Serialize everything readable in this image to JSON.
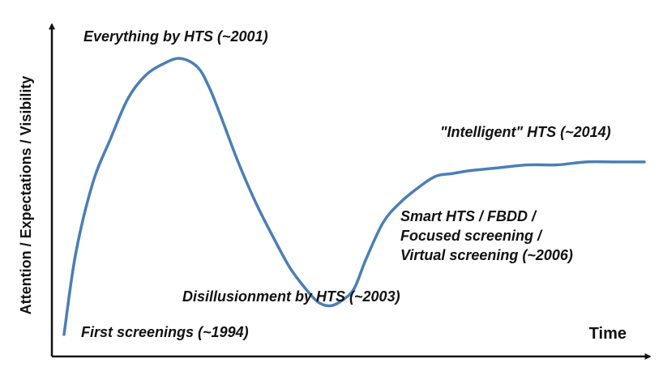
{
  "chart_data": {
    "type": "line",
    "title": "",
    "xlabel": "Time",
    "ylabel": "Attention / Expectations / Visibility",
    "xlim": [
      0,
      100
    ],
    "ylim": [
      0,
      100
    ],
    "grid": false,
    "ticks_shown": false,
    "series": [
      {
        "color": "#4a7fb5",
        "x": [
          0,
          2,
          5,
          8,
          11,
          14,
          17,
          20,
          23,
          25,
          27,
          30,
          33,
          36,
          39,
          42,
          44,
          46,
          48,
          50,
          52,
          55,
          58,
          61,
          64,
          67,
          70,
          75,
          80,
          85,
          90,
          95,
          100
        ],
        "y": [
          2,
          30,
          55,
          70,
          84,
          92,
          96,
          98,
          95,
          88,
          78,
          62,
          48,
          36,
          25,
          17,
          13,
          12,
          14,
          18,
          28,
          41,
          48,
          53,
          57,
          58,
          59,
          60,
          61,
          61,
          62,
          62,
          62
        ]
      }
    ],
    "annotations": [
      {
        "key": "first",
        "text": "First screenings (~1994)",
        "x": 2,
        "y": 2
      },
      {
        "key": "peak",
        "text": "Everything by HTS (~2001)",
        "x": 20,
        "y": 98
      },
      {
        "key": "trough",
        "text": "Disillusionment by HTS (~2003)",
        "x": 46,
        "y": 12
      },
      {
        "key": "smart",
        "lines": [
          "Smart HTS / FBDD /",
          "Focused screening /",
          "Virtual screening (~2006)"
        ],
        "x": 61,
        "y": 50
      },
      {
        "key": "intelligent",
        "text": "\"Intelligent\" HTS (~2014)",
        "x": 80,
        "y": 62
      }
    ]
  },
  "colors": {
    "curve": "#4a7fb5",
    "axis": "#111111",
    "text": "#111111"
  }
}
